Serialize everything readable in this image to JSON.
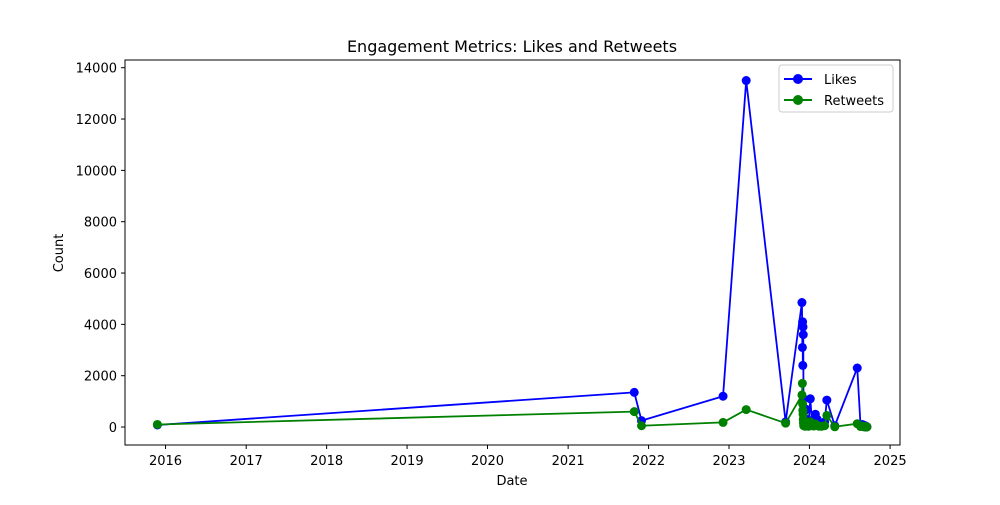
{
  "chart_data": {
    "type": "line",
    "title": "Engagement Metrics: Likes and Retweets",
    "xlabel": "Date",
    "ylabel": "Count",
    "x_axis_type": "date",
    "xlim": [
      "2015-07-01",
      "2025-02-15"
    ],
    "ylim": [
      -700,
      14300
    ],
    "grid": false,
    "legend_position": "upper right",
    "xticks": [
      "2016-01-01",
      "2017-01-01",
      "2018-01-01",
      "2019-01-01",
      "2020-01-01",
      "2021-01-01",
      "2022-01-01",
      "2023-01-01",
      "2024-01-01",
      "2025-01-01"
    ],
    "xtick_labels": [
      "2016",
      "2017",
      "2018",
      "2019",
      "2020",
      "2021",
      "2022",
      "2023",
      "2024",
      "2025"
    ],
    "yticks": [
      0,
      2000,
      4000,
      6000,
      8000,
      10000,
      12000,
      14000
    ],
    "ytick_labels": [
      "0",
      "2000",
      "4000",
      "6000",
      "8000",
      "10000",
      "12000",
      "14000"
    ],
    "x": [
      "2015-11-25",
      "2021-10-28",
      "2021-11-30",
      "2022-12-05",
      "2023-03-20",
      "2023-09-15",
      "2023-11-28",
      "2023-11-30",
      "2023-12-01",
      "2023-12-02",
      "2023-12-03",
      "2023-12-04",
      "2023-12-05",
      "2023-12-06",
      "2023-12-08",
      "2023-12-12",
      "2023-12-16",
      "2023-12-20",
      "2023-12-28",
      "2024-01-05",
      "2024-01-12",
      "2024-01-20",
      "2024-01-28",
      "2024-02-05",
      "2024-02-14",
      "2024-02-25",
      "2024-03-10",
      "2024-03-20",
      "2024-04-25",
      "2024-08-05",
      "2024-08-20",
      "2024-08-28",
      "2024-09-05",
      "2024-09-10",
      "2024-09-14",
      "2024-09-18"
    ],
    "series": [
      {
        "name": "Likes",
        "color": "#0000ff",
        "values": [
          80,
          1350,
          250,
          1200,
          13500,
          200,
          4850,
          3100,
          4100,
          2400,
          3900,
          3600,
          1100,
          200,
          600,
          100,
          700,
          300,
          100,
          1100,
          250,
          100,
          500,
          300,
          100,
          100,
          200,
          1050,
          50,
          2300,
          50,
          100,
          20,
          50,
          0,
          10
        ]
      },
      {
        "name": "Retweets",
        "color": "#008000",
        "values": [
          100,
          600,
          50,
          180,
          680,
          150,
          1250,
          1700,
          900,
          650,
          500,
          300,
          150,
          50,
          100,
          30,
          200,
          80,
          30,
          200,
          80,
          40,
          120,
          60,
          30,
          30,
          50,
          450,
          10,
          130,
          20,
          40,
          5,
          20,
          0,
          5
        ]
      }
    ]
  }
}
